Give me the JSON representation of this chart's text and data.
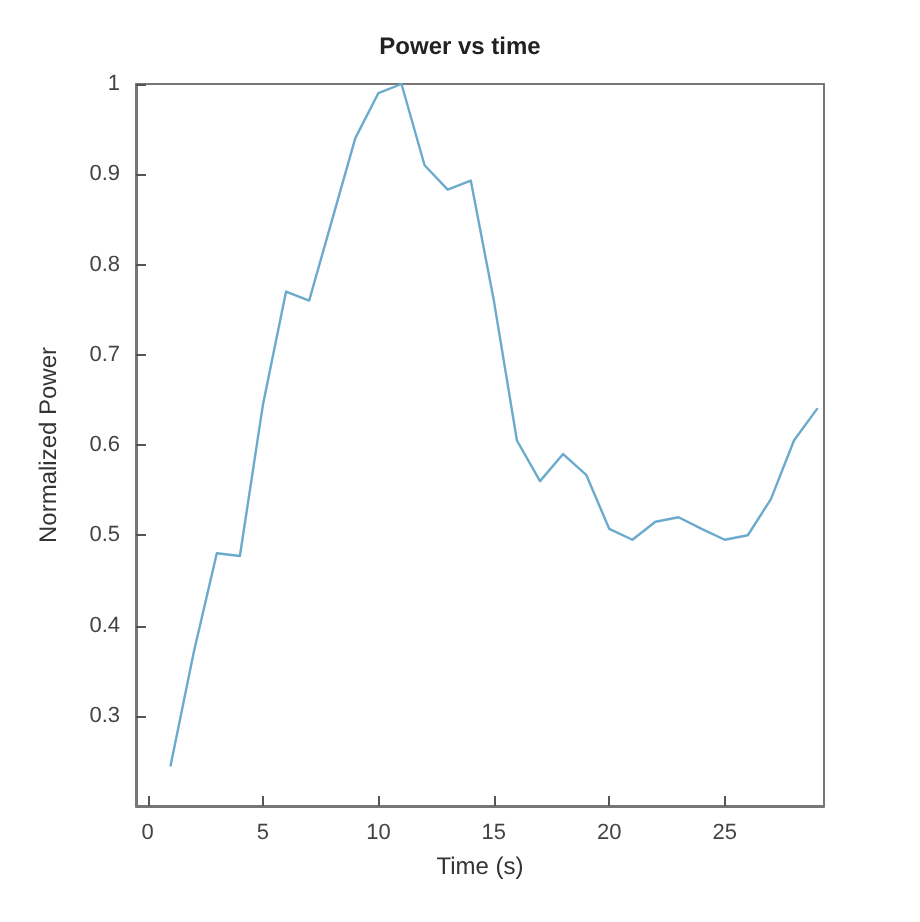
{
  "chart_data": {
    "type": "line",
    "title": "Power vs time",
    "xlabel": "Time (s)",
    "ylabel": "Normalized Power",
    "x": [
      1,
      2,
      3,
      4,
      5,
      6,
      7,
      8,
      9,
      10,
      11,
      12,
      13,
      14,
      15,
      16,
      17,
      18,
      19,
      20,
      21,
      22,
      23,
      24,
      25,
      26,
      27,
      28,
      29
    ],
    "series": [
      {
        "color": "#6aaacc",
        "values": [
          0.245,
          0.37,
          0.48,
          0.477,
          0.645,
          0.77,
          0.76,
          0.85,
          0.94,
          0.99,
          1.0,
          0.91,
          0.883,
          0.893,
          0.76,
          0.605,
          0.56,
          0.59,
          0.567,
          0.507,
          0.495,
          0.515,
          0.52,
          0.507,
          0.495,
          0.5,
          0.54,
          0.605,
          0.64
        ]
      }
    ],
    "xlim": [
      -0.5,
      29.3
    ],
    "ylim": [
      0.2,
      1
    ],
    "xticks": [
      0,
      5,
      10,
      15,
      20,
      25
    ],
    "yticks": [
      0.3,
      0.4,
      0.5,
      0.6,
      0.7,
      0.8,
      0.9,
      1
    ],
    "grid": false,
    "marker": "none",
    "line_style": "solid"
  }
}
